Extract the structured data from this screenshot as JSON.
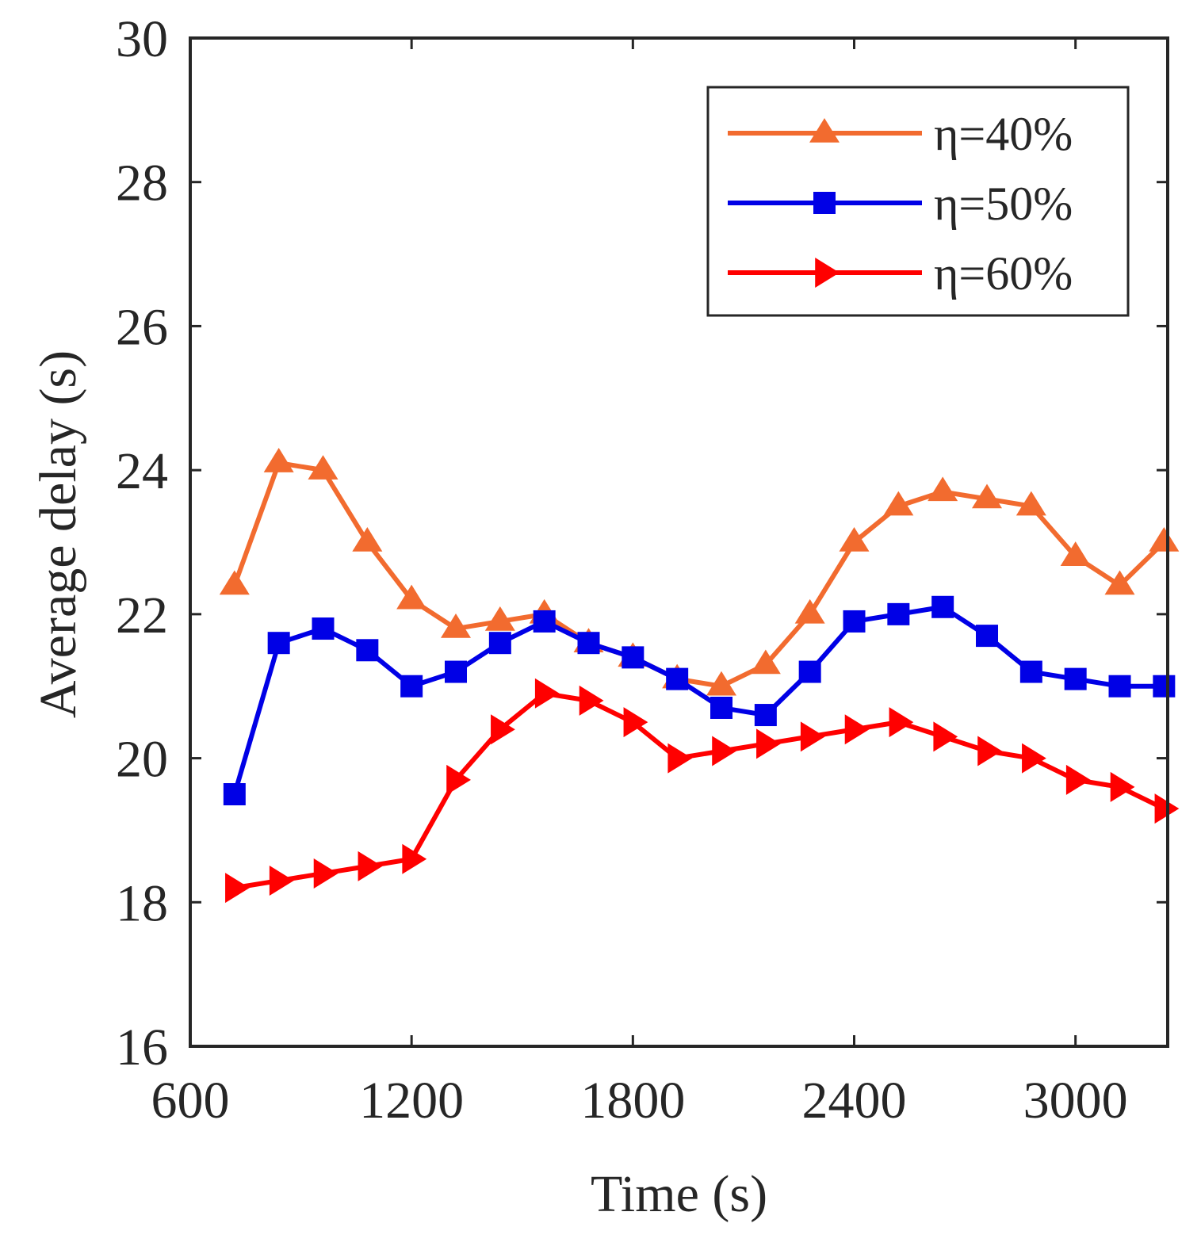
{
  "chart_data": {
    "type": "line",
    "title": "",
    "xlabel": "Time (s)",
    "ylabel": "Average delay (s)",
    "xlim": [
      600,
      3250
    ],
    "ylim": [
      16,
      30
    ],
    "xticks": [
      600,
      1200,
      1800,
      2400,
      3000
    ],
    "yticks": [
      16,
      18,
      20,
      22,
      24,
      26,
      28,
      30
    ],
    "grid": false,
    "legend_position": "top-right",
    "x": [
      720,
      840,
      960,
      1080,
      1200,
      1320,
      1440,
      1560,
      1680,
      1800,
      1920,
      2040,
      2160,
      2280,
      2400,
      2520,
      2640,
      2760,
      2880,
      3000,
      3120,
      3240
    ],
    "series": [
      {
        "name": "η=40%",
        "color": "#F26B2F",
        "marker": "triangle-up",
        "values": [
          22.4,
          24.1,
          24.0,
          23.0,
          22.2,
          21.8,
          21.9,
          22.0,
          21.6,
          21.4,
          21.1,
          21.0,
          21.3,
          22.0,
          23.0,
          23.5,
          23.7,
          23.6,
          23.5,
          22.8,
          22.4,
          23.0
        ]
      },
      {
        "name": "η=50%",
        "color": "#0000E6",
        "marker": "square",
        "values": [
          19.5,
          21.6,
          21.8,
          21.5,
          21.0,
          21.2,
          21.6,
          21.9,
          21.6,
          21.4,
          21.1,
          20.7,
          20.6,
          21.2,
          21.9,
          22.0,
          22.1,
          21.7,
          21.2,
          21.1,
          21.0,
          21.0
        ]
      },
      {
        "name": "η=60%",
        "color": "#FF0000",
        "marker": "triangle-right",
        "values": [
          18.2,
          18.3,
          18.4,
          18.5,
          18.6,
          19.7,
          20.4,
          20.9,
          20.8,
          20.5,
          20.0,
          20.1,
          20.2,
          20.3,
          20.4,
          20.5,
          20.3,
          20.1,
          20.0,
          19.7,
          19.6,
          19.3
        ]
      }
    ]
  }
}
